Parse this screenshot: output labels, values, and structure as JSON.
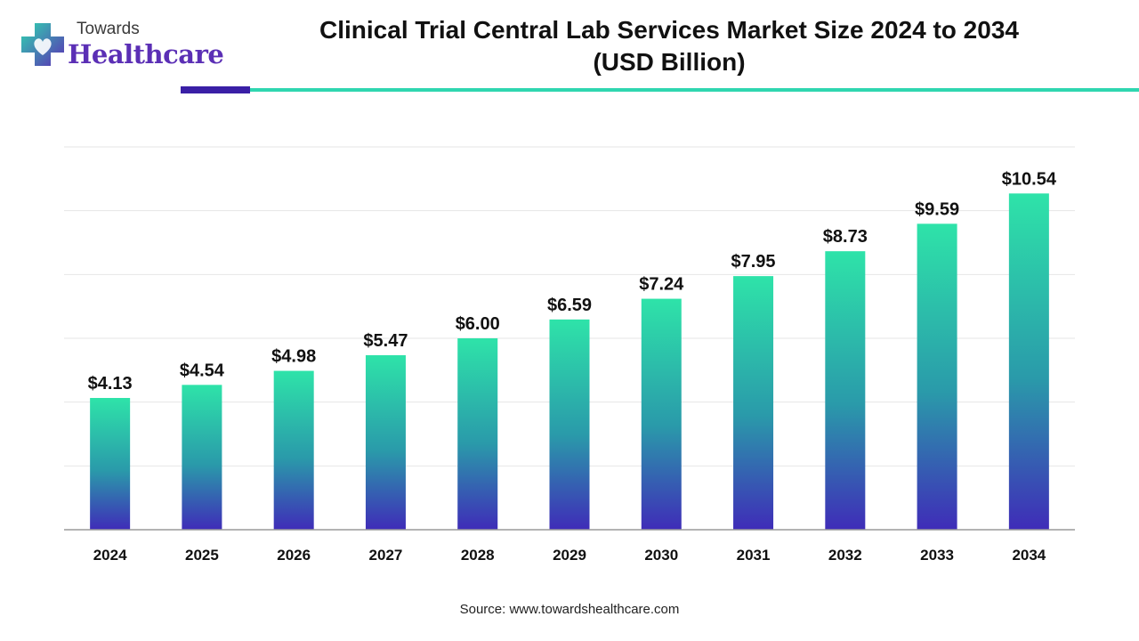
{
  "brand": {
    "line1": "Towards",
    "line2": "Healthcare",
    "accent_dark": "#3a1fa6",
    "accent_teal": "#2fd6b0",
    "icon": "plus-heart-icon"
  },
  "chart_data": {
    "type": "bar",
    "title_line1": "Clinical Trial Central Lab Services Market Size 2024 to 2034",
    "title_line2": "(USD Billion)",
    "categories": [
      "2024",
      "2025",
      "2026",
      "2027",
      "2028",
      "2029",
      "2030",
      "2031",
      "2032",
      "2033",
      "2034"
    ],
    "values": [
      4.13,
      4.54,
      4.98,
      5.47,
      6.0,
      6.59,
      7.24,
      7.95,
      8.73,
      9.59,
      10.54
    ],
    "value_labels": [
      "$4.13",
      "$4.54",
      "$4.98",
      "$5.47",
      "$6.00",
      "$6.59",
      "$7.24",
      "$7.95",
      "$8.73",
      "$9.59",
      "$10.54"
    ],
    "xlabel": "",
    "ylabel": "",
    "ylim": [
      0,
      12
    ],
    "grid": true,
    "legend": "none",
    "bar_gradient": [
      "#2ee3a9",
      "#2a9aaa",
      "#3f2cb8"
    ]
  },
  "source": "Source: www.towardshealthcare.com"
}
